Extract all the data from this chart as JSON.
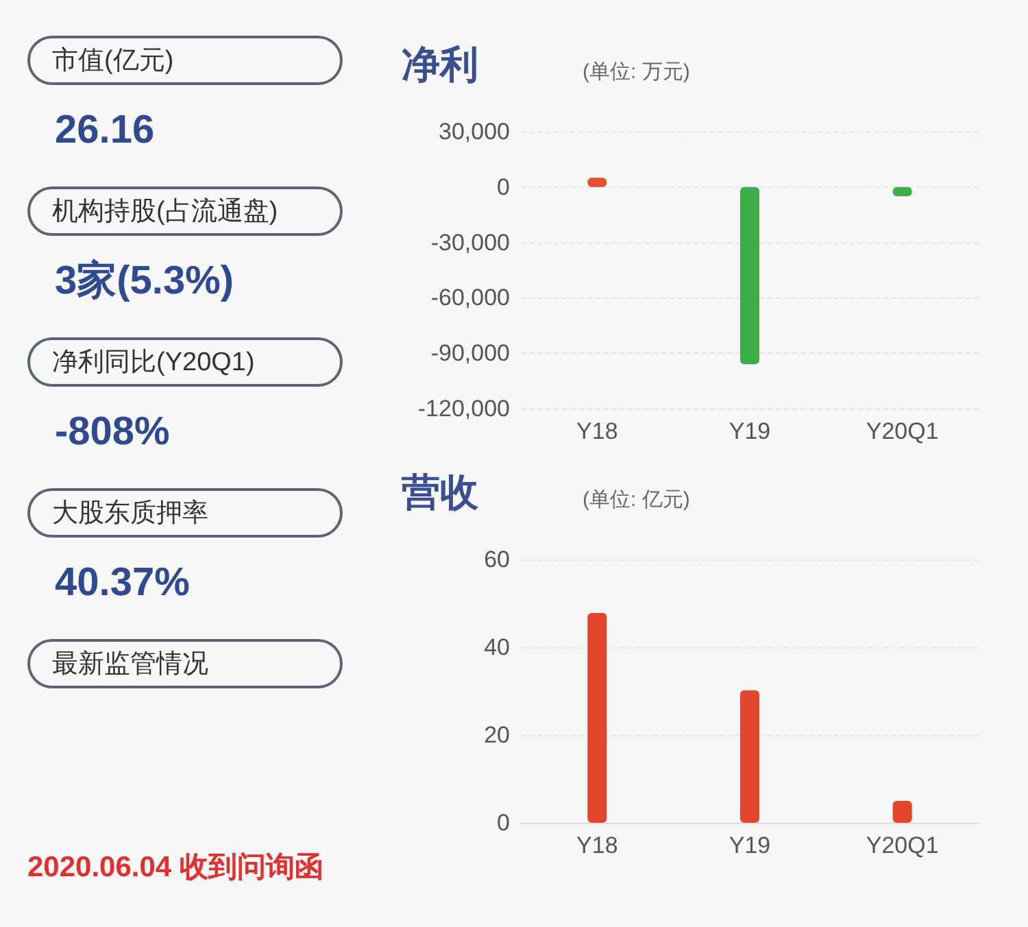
{
  "chart_data": [
    {
      "type": "other",
      "annotations": [
        "市值(亿元)",
        "26.16",
        "机构持股(占流通盘)",
        "3家(5.3%)",
        "净利同比(Y20Q1)",
        "-808%",
        "大股东质押率",
        "40.37%",
        "最新监管情况",
        "2020.06.04 收到问询函"
      ]
    },
    {
      "type": "bar",
      "title": "净利",
      "subtitle": "(单位: 万元)",
      "categories": [
        "Y18",
        "Y19",
        "Y20Q1"
      ],
      "values": [
        5000,
        -96000,
        -5000
      ],
      "colors": [
        "#e8502c",
        "#3fae4a",
        "#3fae4a"
      ],
      "ylim": [
        -120000,
        30000
      ],
      "yticks": [
        {
          "value": -120000,
          "label": "-120,000"
        },
        {
          "value": -90000,
          "label": "-90,000"
        },
        {
          "value": -60000,
          "label": "-60,000"
        },
        {
          "value": -30000,
          "label": "-30,000"
        },
        0,
        {
          "value": 30000,
          "label": "30,000"
        }
      ],
      "grid": "y"
    },
    {
      "type": "bar",
      "title": "营收",
      "subtitle": "(单位: 亿元)",
      "categories": [
        "Y18",
        "Y19",
        "Y20Q1"
      ],
      "values": [
        47.8,
        30.2,
        5.0
      ],
      "colors": [
        "#e2452b",
        "#e2452b",
        "#e2452b"
      ],
      "ylim": [
        0,
        60
      ],
      "yticks": [
        0,
        20,
        40,
        60
      ],
      "grid": "y"
    }
  ]
}
